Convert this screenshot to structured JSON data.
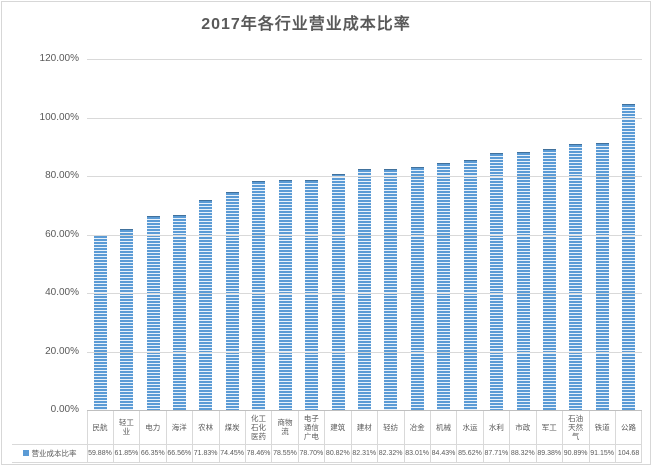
{
  "chart_data": {
    "type": "bar",
    "title": "2017年各行业营业成本比率",
    "legend": "营业成本比率",
    "categories": [
      "民航",
      "轻工业",
      "电力",
      "海洋",
      "农林",
      "煤炭",
      "化工石化医药",
      "商物流",
      "电子通信广电",
      "建筑",
      "建材",
      "轻纺",
      "冶金",
      "机械",
      "水运",
      "水利",
      "市政",
      "军工",
      "石油天然气",
      "铁道",
      "公路"
    ],
    "values": [
      59.88,
      61.85,
      66.35,
      66.56,
      71.83,
      74.45,
      78.46,
      78.55,
      78.7,
      80.82,
      82.31,
      82.32,
      83.01,
      84.43,
      85.62,
      87.71,
      88.32,
      89.38,
      90.89,
      91.15,
      104.68
    ],
    "value_labels": [
      "59.88%",
      "61.85%",
      "66.35%",
      "66.56%",
      "71.83%",
      "74.45%",
      "78.46%",
      "78.55%",
      "78.70%",
      "80.82%",
      "82.31%",
      "82.32%",
      "83.01%",
      "84.43%",
      "85.62%",
      "87.71%",
      "88.32%",
      "89.38%",
      "90.89%",
      "91.15%",
      "104.68"
    ],
    "y_ticks": [
      "0.00%",
      "20.00%",
      "40.00%",
      "60.00%",
      "80.00%",
      "100.00%",
      "120.00%"
    ],
    "ylim": [
      0,
      120
    ],
    "xlabel": "",
    "ylabel": "",
    "grid": true,
    "legend_position": "bottom-table-left",
    "colors": {
      "bar": "#5b9bd5",
      "bar_stripe": "#e9f2fb",
      "bar_cap": "#41719c",
      "grid": "#d9d9d9",
      "axis": "#bfbfbf",
      "text": "#595959"
    }
  }
}
